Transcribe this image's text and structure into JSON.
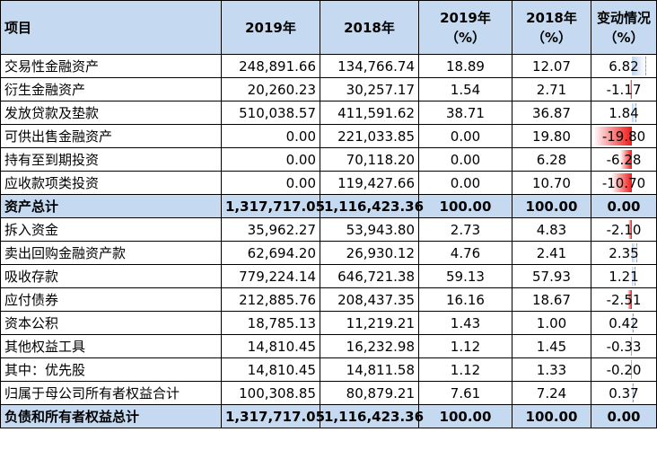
{
  "header": {
    "item": "项目",
    "y2019": "2019年",
    "y2018": "2018年",
    "pct2019_line1": "2019年",
    "pct2019_line2": "（%）",
    "pct2018_line1": "2018年",
    "pct2018_line2": "（%）",
    "change_line1": "变动情况",
    "change_line2": "（%）"
  },
  "rows": [
    {
      "label": "交易性金融资产",
      "v2019": "248,891.66",
      "v2018": "134,766.74",
      "p2019": "18.89",
      "p2018": "12.07",
      "change": "6.82",
      "change_num": 6.82,
      "total": false
    },
    {
      "label": "衍生金融资产",
      "v2019": "20,260.23",
      "v2018": "30,257.17",
      "p2019": "1.54",
      "p2018": "2.71",
      "change": "-1.17",
      "change_num": -1.17,
      "total": false
    },
    {
      "label": "发放贷款及垫款",
      "v2019": "510,038.57",
      "v2018": "411,591.62",
      "p2019": "38.71",
      "p2018": "36.87",
      "change": "1.84",
      "change_num": 1.84,
      "total": false
    },
    {
      "label": "可供出售金融资产",
      "v2019": "0.00",
      "v2018": "221,033.85",
      "p2019": "0.00",
      "p2018": "19.80",
      "change": "-19.80",
      "change_num": -19.8,
      "total": false
    },
    {
      "label": "持有至到期投资",
      "v2019": "0.00",
      "v2018": "70,118.20",
      "p2019": "0.00",
      "p2018": "6.28",
      "change": "-6.28",
      "change_num": -6.28,
      "total": false
    },
    {
      "label": "应收款项类投资",
      "v2019": "0.00",
      "v2018": "119,427.66",
      "p2019": "0.00",
      "p2018": "10.70",
      "change": "-10.70",
      "change_num": -10.7,
      "total": false
    },
    {
      "label": "资产总计",
      "v2019": "1,317,717.05",
      "v2018": "1,116,423.36",
      "p2019": "100.00",
      "p2018": "100.00",
      "change": "0.00",
      "change_num": 0,
      "total": true
    },
    {
      "label": "拆入资金",
      "v2019": "35,962.27",
      "v2018": "53,943.80",
      "p2019": "2.73",
      "p2018": "4.83",
      "change": "-2.10",
      "change_num": -2.1,
      "total": false
    },
    {
      "label": "卖出回购金融资产款",
      "v2019": "62,694.20",
      "v2018": "26,930.12",
      "p2019": "4.76",
      "p2018": "2.41",
      "change": "2.35",
      "change_num": 2.35,
      "total": false
    },
    {
      "label": "吸收存款",
      "v2019": "779,224.14",
      "v2018": "646,721.38",
      "p2019": "59.13",
      "p2018": "57.93",
      "change": "1.21",
      "change_num": 1.21,
      "total": false
    },
    {
      "label": "应付债券",
      "v2019": "212,885.76",
      "v2018": "208,437.35",
      "p2019": "16.16",
      "p2018": "18.67",
      "change": "-2.51",
      "change_num": -2.51,
      "total": false
    },
    {
      "label": "资本公积",
      "v2019": "18,785.13",
      "v2018": "11,219.21",
      "p2019": "1.43",
      "p2018": "1.00",
      "change": "0.42",
      "change_num": 0.42,
      "total": false
    },
    {
      "label": "其他权益工具",
      "v2019": "14,810.45",
      "v2018": "16,232.98",
      "p2019": "1.12",
      "p2018": "1.45",
      "change": "-0.33",
      "change_num": -0.33,
      "total": false
    },
    {
      "label": "其中：优先股",
      "v2019": "14,810.45",
      "v2018": "14,811.58",
      "p2019": "1.12",
      "p2018": "1.33",
      "change": "-0.20",
      "change_num": -0.2,
      "total": false
    },
    {
      "label": "归属于母公司所有者权益合计",
      "v2019": "100,308.85",
      "v2018": "80,879.21",
      "p2019": "7.61",
      "p2018": "7.24",
      "change": "0.37",
      "change_num": 0.37,
      "total": false
    },
    {
      "label": "负债和所有者权益总计",
      "v2019": "1,317,717.05",
      "v2018": "1,116,423.36",
      "p2019": "100.00",
      "p2018": "100.00",
      "change": "0.00",
      "change_num": 0,
      "total": true
    }
  ],
  "colors": {
    "header_bg": "#c5d9f1",
    "positive_bar": "#bcd3f0",
    "negative_bar": "#f01818"
  }
}
